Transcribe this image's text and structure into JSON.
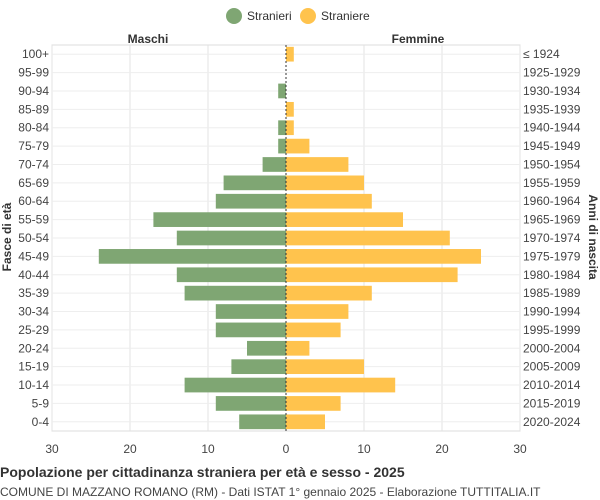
{
  "chart_data": {
    "type": "bar",
    "orientation": "horizontal-pyramid",
    "title": "Popolazione per cittadinanza straniera per età e sesso - 2025",
    "subtitle": "COMUNE DI MAZZANO ROMANO (RM) - Dati ISTAT 1° gennaio 2025 - Elaborazione TUTTITALIA.IT",
    "left_header": "Maschi",
    "right_header": "Femmine",
    "ylabel_left": "Fasce di età",
    "ylabel_right": "Anni di nascita",
    "xlim": [
      -30,
      30
    ],
    "x_ticks": [
      "30",
      "20",
      "10",
      "0",
      "10",
      "20",
      "30"
    ],
    "grid": true,
    "legend_position": "top-center",
    "categories": [
      "100+",
      "95-99",
      "90-94",
      "85-89",
      "80-84",
      "75-79",
      "70-74",
      "65-69",
      "60-64",
      "55-59",
      "50-54",
      "45-49",
      "40-44",
      "35-39",
      "30-34",
      "25-29",
      "20-24",
      "15-19",
      "10-14",
      "5-9",
      "0-4"
    ],
    "birth_years": [
      "≤ 1924",
      "1925-1929",
      "1930-1934",
      "1935-1939",
      "1940-1944",
      "1945-1949",
      "1950-1954",
      "1955-1959",
      "1960-1964",
      "1965-1969",
      "1970-1974",
      "1975-1979",
      "1980-1984",
      "1985-1989",
      "1990-1994",
      "1995-1999",
      "2000-2004",
      "2005-2009",
      "2010-2014",
      "2015-2019",
      "2020-2024"
    ],
    "series": [
      {
        "name": "Stranieri",
        "color": "#7fa673",
        "values": [
          0,
          0,
          1,
          0,
          1,
          1,
          3,
          8,
          9,
          17,
          14,
          24,
          14,
          13,
          9,
          9,
          5,
          7,
          13,
          9,
          6
        ]
      },
      {
        "name": "Straniere",
        "color": "#ffc34d",
        "values": [
          1,
          0,
          0,
          1,
          1,
          3,
          8,
          10,
          11,
          15,
          21,
          25,
          22,
          11,
          8,
          7,
          3,
          10,
          14,
          7,
          5
        ]
      }
    ]
  }
}
